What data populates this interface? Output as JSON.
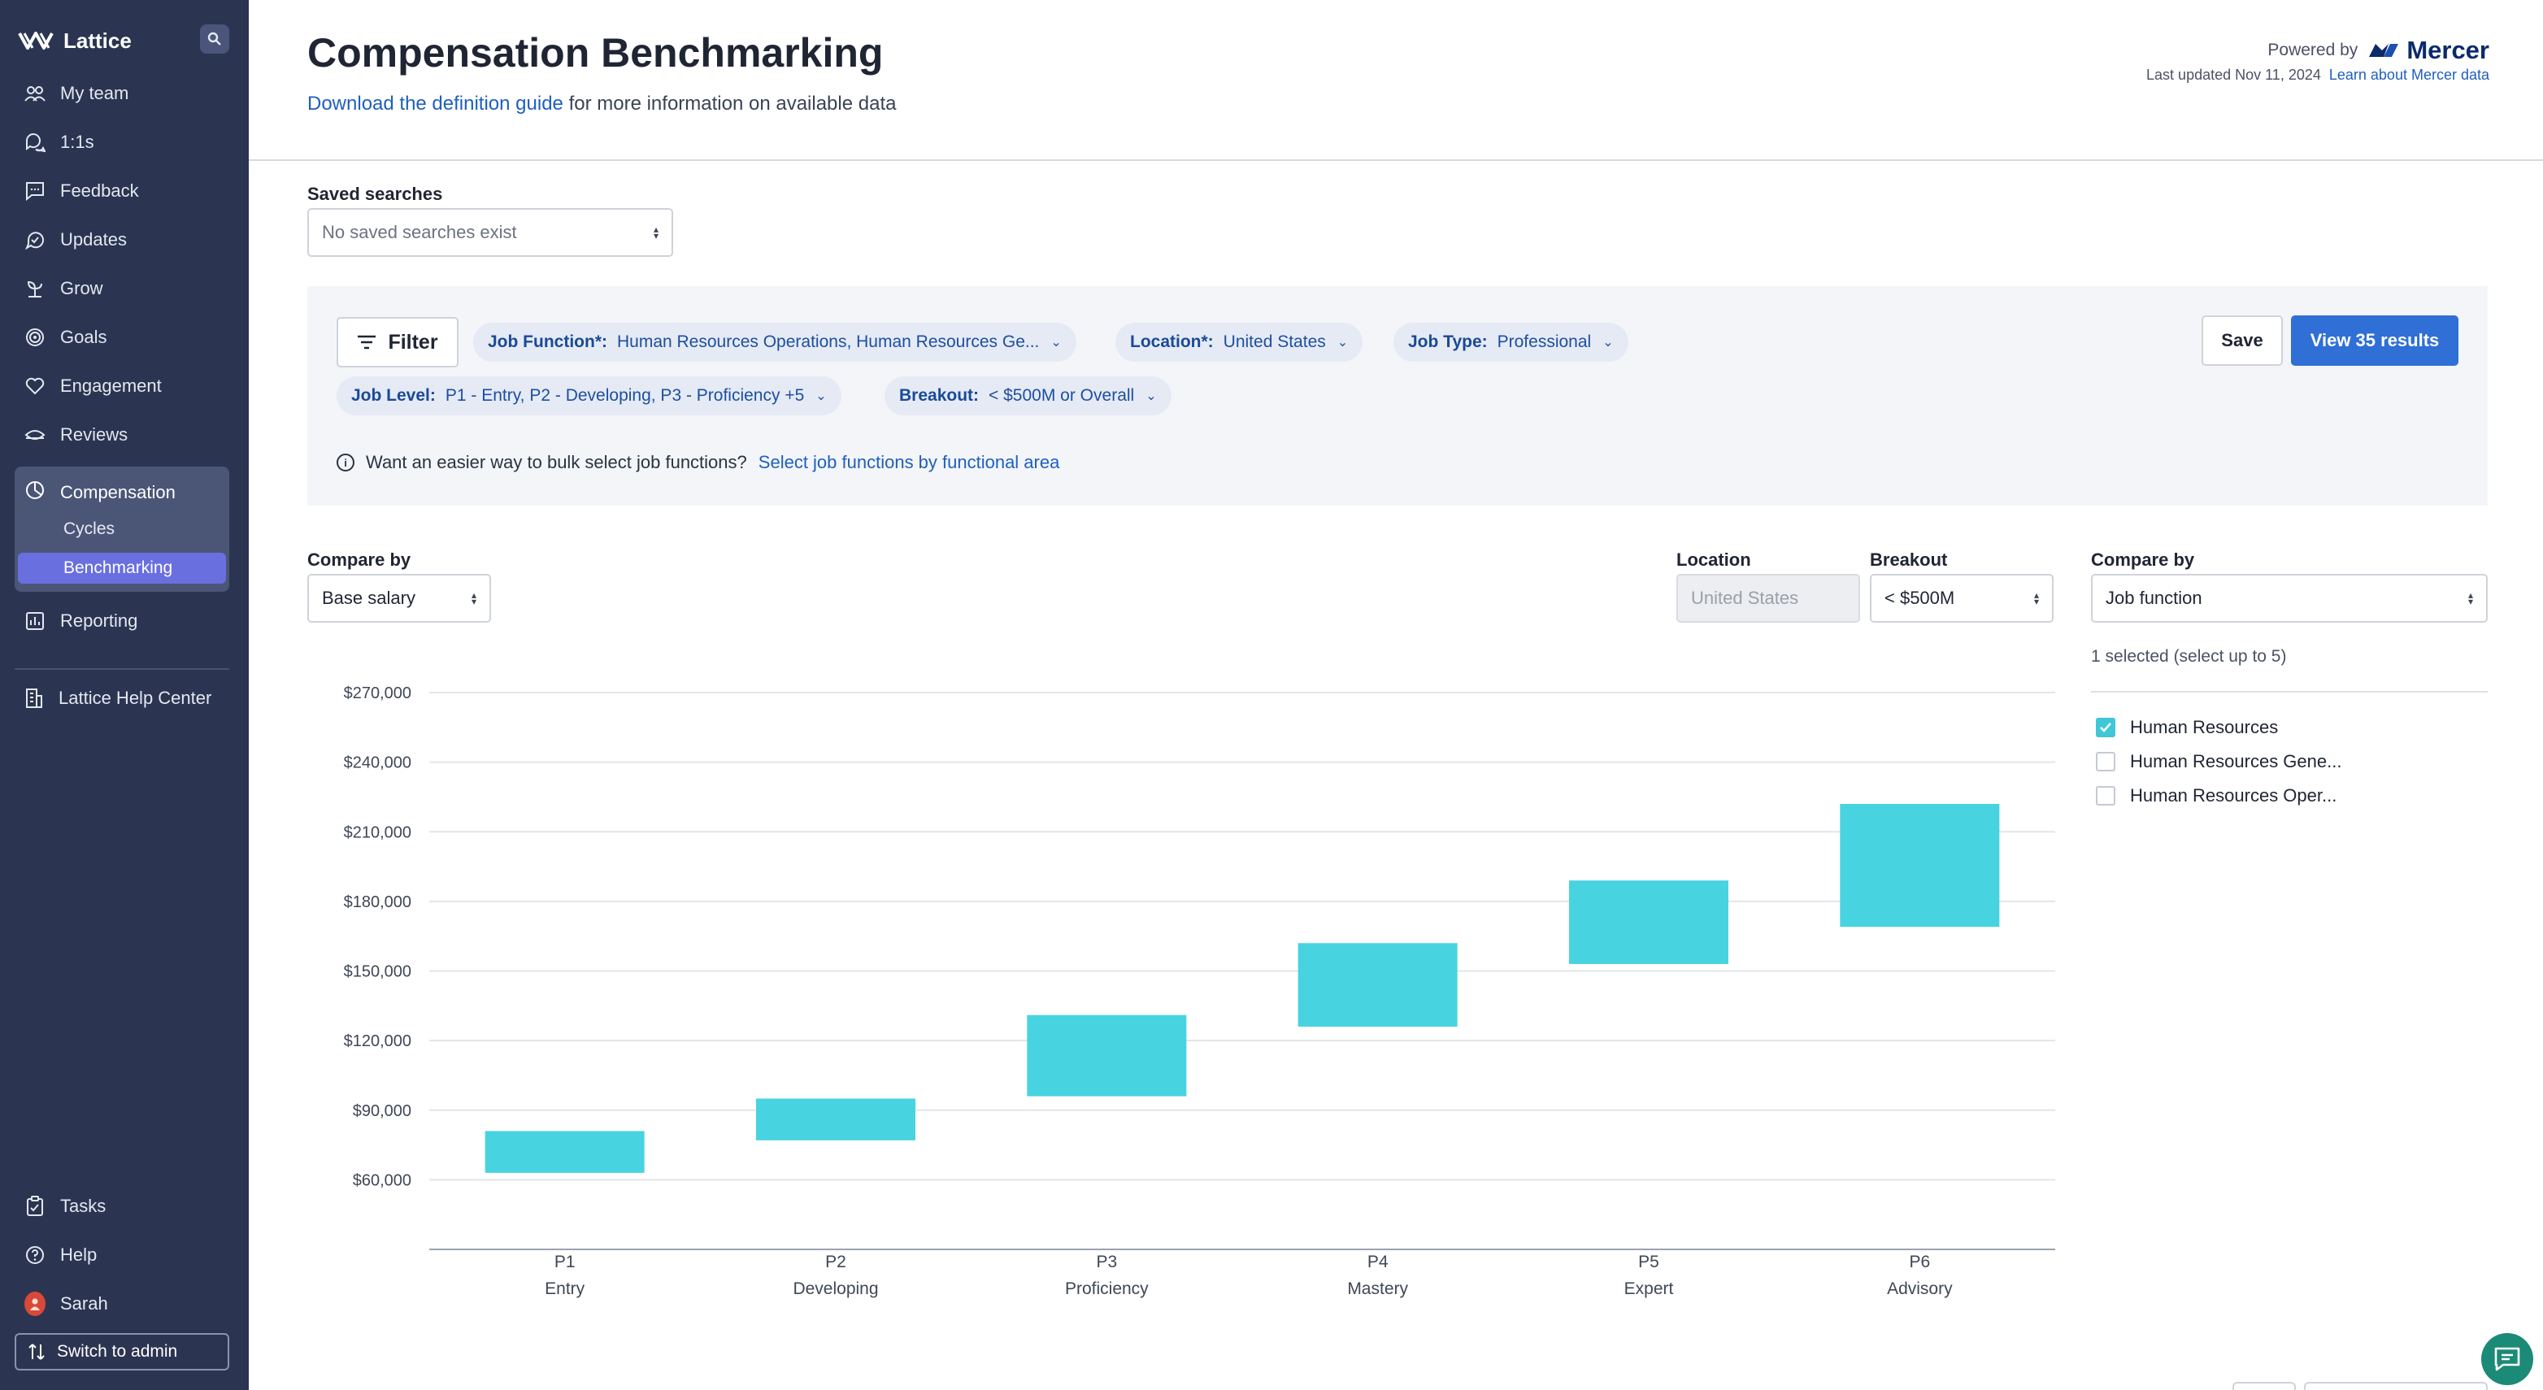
{
  "sidebar": {
    "brand": "Lattice",
    "items": [
      {
        "label": "My team",
        "icon": "people-icon"
      },
      {
        "label": "1:1s",
        "icon": "chat-bubbles-icon"
      },
      {
        "label": "Feedback",
        "icon": "feedback-icon"
      },
      {
        "label": "Updates",
        "icon": "updates-icon"
      },
      {
        "label": "Grow",
        "icon": "plant-icon"
      },
      {
        "label": "Goals",
        "icon": "target-icon"
      },
      {
        "label": "Engagement",
        "icon": "heart-icon"
      },
      {
        "label": "Reviews",
        "icon": "reviews-icon"
      }
    ],
    "compensation": {
      "label": "Compensation",
      "sub": [
        "Cycles",
        "Benchmarking"
      ],
      "active": "Benchmarking"
    },
    "reporting": "Reporting",
    "help_center": "Lattice Help Center",
    "tasks": "Tasks",
    "help": "Help",
    "user": "Sarah",
    "switch_admin": "Switch to admin"
  },
  "header": {
    "title": "Compensation Benchmarking",
    "definition_link": "Download the definition guide",
    "definition_suffix": " for more information on available data",
    "powered_by": "Powered by",
    "provider": "Mercer",
    "last_updated": "Last updated Nov 11, 2024",
    "learn_link": "Learn about Mercer data"
  },
  "saved_searches": {
    "label": "Saved searches",
    "value": "No saved searches exist"
  },
  "filters": {
    "filter_button": "Filter",
    "chips": [
      {
        "key": "Job Function*:",
        "value": "Human Resources Operations, Human Resources Ge..."
      },
      {
        "key": "Location*:",
        "value": "United States"
      },
      {
        "key": "Job Type:",
        "value": "Professional"
      },
      {
        "key": "Job Level:",
        "value": "P1 - Entry, P2 - Developing, P3 - Proficiency +5"
      },
      {
        "key": "Breakout:",
        "value": "< $500M or Overall"
      }
    ],
    "save_button": "Save",
    "results_button": "View 35 results",
    "hint_text": "Want an easier way to bulk select job functions?",
    "hint_link": "Select job functions by functional area"
  },
  "controls": {
    "compare_by_label": "Compare by",
    "compare_by_value": "Base salary",
    "location_label": "Location",
    "location_value": "United States",
    "breakout_label": "Breakout",
    "breakout_value": "< $500M",
    "compare_by2_label": "Compare by",
    "compare_by2_value": "Job function"
  },
  "right_panel": {
    "selected_text": "1 selected (select up to 5)",
    "options": [
      {
        "label": "Human Resources",
        "checked": true
      },
      {
        "label": "Human Resources Gene...",
        "checked": false
      },
      {
        "label": "Human Resources Oper...",
        "checked": false
      }
    ]
  },
  "colors": {
    "sidebar_bg": "#2b3551",
    "accent_blue": "#2f6fd6",
    "bar_color": "#48d3e0",
    "active_nav": "#6a6fe0"
  },
  "chart_data": {
    "type": "bar",
    "subtype": "floating-range",
    "series": [
      {
        "name": "Human Resources"
      }
    ],
    "categories": [
      {
        "code": "P1",
        "name": "Entry",
        "low": 63000,
        "high": 81000
      },
      {
        "code": "P2",
        "name": "Developing",
        "low": 77000,
        "high": 95000
      },
      {
        "code": "P3",
        "name": "Proficiency",
        "low": 96000,
        "high": 131000
      },
      {
        "code": "P4",
        "name": "Mastery",
        "low": 126000,
        "high": 162000
      },
      {
        "code": "P5",
        "name": "Expert",
        "low": 153000,
        "high": 189000
      },
      {
        "code": "P6",
        "name": "Advisory",
        "low": 169000,
        "high": 222000
      }
    ],
    "yticks": [
      "$60,000",
      "$90,000",
      "$120,000",
      "$150,000",
      "$180,000",
      "$210,000",
      "$240,000",
      "$270,000"
    ],
    "ylim": [
      30000,
      270000
    ],
    "grid": true
  }
}
